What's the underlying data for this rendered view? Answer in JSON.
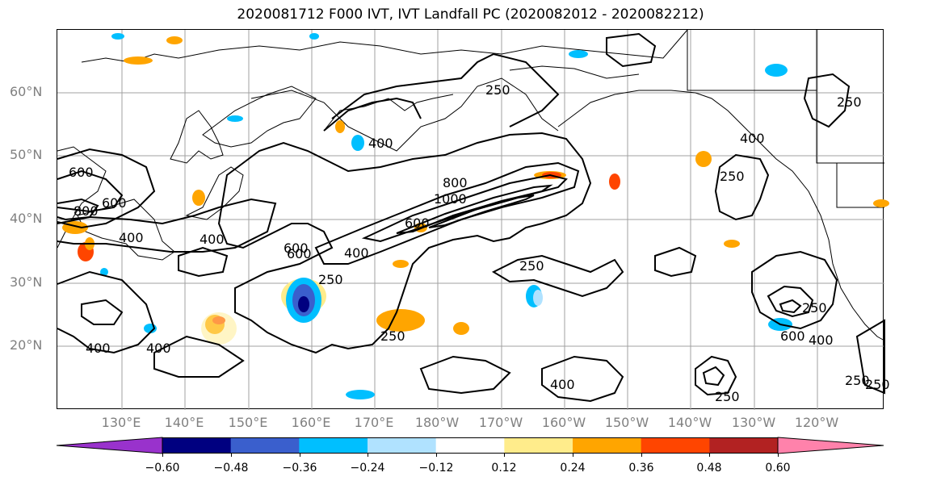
{
  "title": "2020081712 F000 IVT, IVT Landfall PC (2020082012 - 2020082212)",
  "lat_labels": [
    "60°N",
    "50°N",
    "40°N",
    "30°N",
    "20°N"
  ],
  "lon_labels": [
    "130°E",
    "140°E",
    "150°E",
    "160°E",
    "170°E",
    "180°W",
    "170°W",
    "160°W",
    "150°W",
    "140°W",
    "130°W",
    "120°W"
  ],
  "contour_labels": [
    "600",
    "400",
    "800",
    "600",
    "400",
    "400",
    "600",
    "800",
    "1000",
    "600",
    "400",
    "250",
    "600",
    "400",
    "250",
    "250",
    "250",
    "400",
    "250",
    "250",
    "400",
    "250",
    "400",
    "250",
    "250",
    "400",
    "600",
    "250"
  ],
  "colorbar": {
    "colors": [
      "#9932cc",
      "#000080",
      "#3a5fcd",
      "#00bfff",
      "#b0e2ff",
      "#ffffff",
      "#ffec8b",
      "#ffa500",
      "#ff4500",
      "#b22222",
      "#ff82ab"
    ],
    "tick_labels": [
      "−0.60",
      "−0.48",
      "−0.36",
      "−0.24",
      "−0.12",
      "0.12",
      "0.24",
      "0.36",
      "0.48",
      "0.60"
    ]
  }
}
